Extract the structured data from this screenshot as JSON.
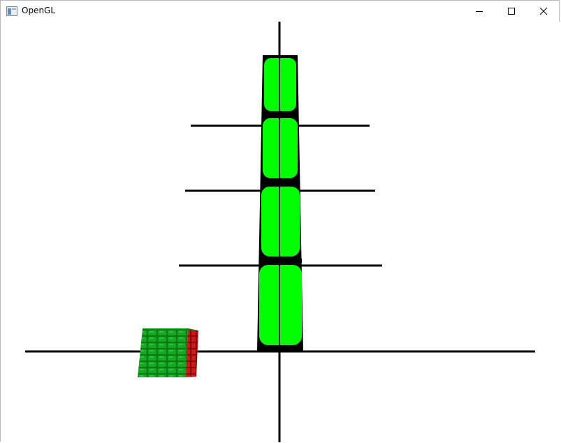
{
  "window": {
    "title": "OpenGL",
    "controls": {
      "minimize": "minimize",
      "maximize": "maximize",
      "close": "close"
    }
  },
  "scene": {
    "background": "#ffffff",
    "line_color": "#000000",
    "green_segment_color": "#00ff00",
    "brick_green": "#0a7a14",
    "brick_red": "#b01010"
  }
}
